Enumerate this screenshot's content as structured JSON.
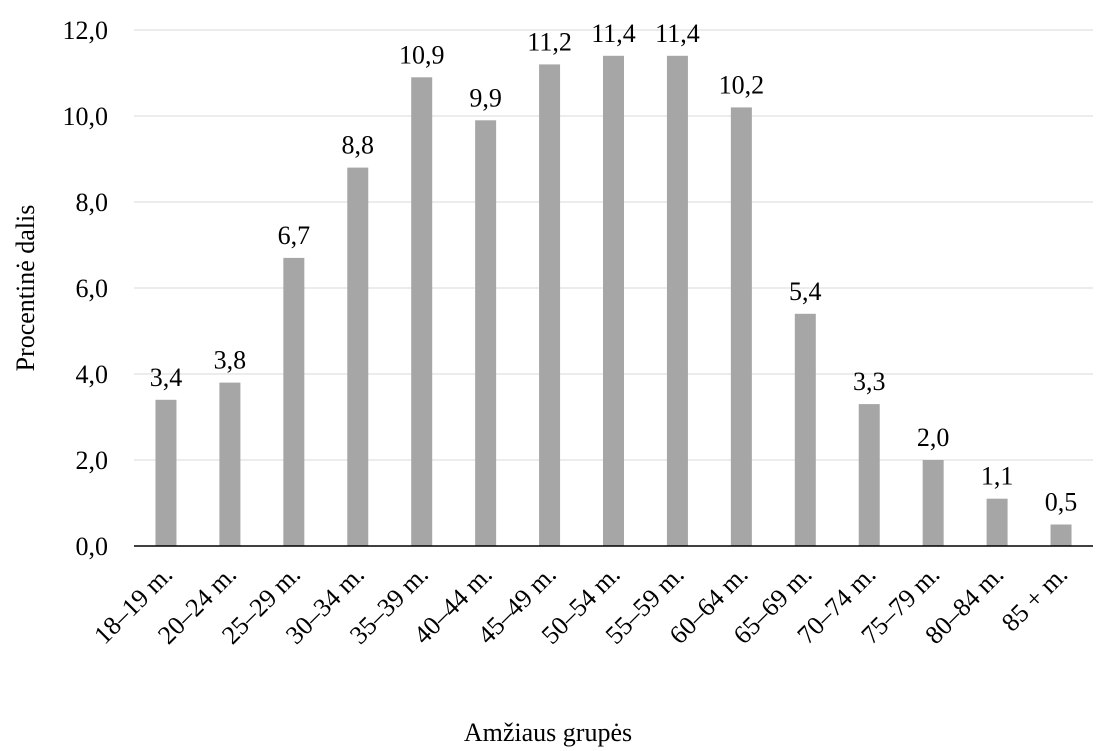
{
  "chart_data": {
    "type": "bar",
    "categories": [
      "18–19 m.",
      "20–24 m.",
      "25–29 m.",
      "30–34 m.",
      "35–39 m.",
      "40–44 m.",
      "45–49 m.",
      "50–54 m.",
      "55–59 m.",
      "60–64 m.",
      "65–69 m.",
      "70–74 m.",
      "75–79 m.",
      "80–84 m.",
      "85 + m."
    ],
    "values": [
      3.4,
      3.8,
      6.7,
      8.8,
      10.9,
      9.9,
      11.2,
      11.4,
      11.4,
      10.2,
      5.4,
      3.3,
      2.0,
      1.1,
      0.5
    ],
    "data_labels": [
      "3,4",
      "3,8",
      "6,7",
      "8,8",
      "10,9",
      "9,9",
      "11,2",
      "11,4",
      "11,4",
      "10,2",
      "5,4",
      "3,3",
      "2,0",
      "1,1",
      "0,5"
    ],
    "title": "",
    "xlabel": "Amžiaus grupės",
    "ylabel": "Procentinė dalis",
    "ylim": [
      0,
      12
    ],
    "yticks": [
      0,
      2,
      4,
      6,
      8,
      10,
      12
    ],
    "ytick_labels": [
      "0,0",
      "2,0",
      "4,0",
      "6,0",
      "8,0",
      "10,0",
      "12,0"
    ],
    "grid": true,
    "bar_color": "#a6a6a6",
    "grid_color": "#d9d9d9",
    "legend": "none"
  }
}
